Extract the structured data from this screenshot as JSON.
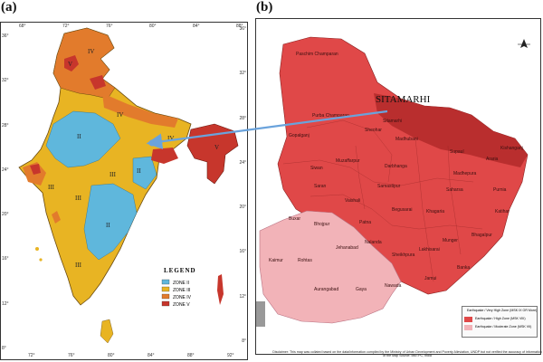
{
  "panels": {
    "a": "(a)",
    "b": "(b)"
  },
  "map_a": {
    "top_ticks": [
      "68°",
      "72°",
      "76°",
      "80°",
      "84°",
      "88°"
    ],
    "bottom_ticks": [
      "72°",
      "76°",
      "80°",
      "84°",
      "88°",
      "92°"
    ],
    "left_ticks": [
      "36°",
      "32°",
      "28°",
      "24°",
      "20°",
      "16°",
      "12°",
      "8°"
    ],
    "right_ticks": [
      "36°",
      "32°",
      "28°",
      "24°",
      "20°",
      "16°",
      "12°",
      "8°"
    ],
    "zone_labels": [
      "IV",
      "V",
      "IV",
      "III",
      "III",
      "II",
      "II",
      "III",
      "IV",
      "V",
      "III",
      "II"
    ],
    "legend": {
      "title": "LEGEND",
      "items": [
        {
          "label": "ZONE II",
          "color": "#5fb7dc"
        },
        {
          "label": "ZONE III",
          "color": "#e8b423"
        },
        {
          "label": "ZONE IV",
          "color": "#e27b2c"
        },
        {
          "label": "ZONE V",
          "color": "#c7362c"
        }
      ]
    }
  },
  "map_b": {
    "callout": "SITAMARHI",
    "districts": [
      "Paschim Champaran",
      "Purba Champaran",
      "Sitamarhi",
      "Sheohar",
      "Madhubani",
      "Supaul",
      "Araria",
      "Kishanganj",
      "Gopalganj",
      "Siwan",
      "Muzaffarpur",
      "Darbhanga",
      "Madhepura",
      "Saran",
      "Samastipur",
      "Saharsa",
      "Purnia",
      "Vaishali",
      "Begusarai",
      "Khagaria",
      "Katihar",
      "Patna",
      "Nalanda",
      "Lakhisarai",
      "Munger",
      "Bhagalpur",
      "Buxar",
      "Bhojpur",
      "Sheikhpura",
      "Kaimur",
      "Rohtas",
      "Jehanabad",
      "Aurangabad",
      "Gaya",
      "Nawada",
      "Jamui",
      "Banka"
    ],
    "legend": [
      {
        "label": "Earthquake / Very High Zone",
        "code": "(MSK IX OR More)",
        "color": "#b12a2a"
      },
      {
        "label": "Earthquake / High Zone",
        "code": "(MSK VIII)",
        "color": "#e04848"
      },
      {
        "label": "Earthquake / Moderate Zone",
        "code": "(MSK VII)",
        "color": "#f2b3b8"
      }
    ],
    "disclaimer": "Disclaimer: This map was collated based on the data/information compiled by the Ministry of Urban Development and Poverty Alleviation, UNDP but not verified the accuracy of information of the Map Source: BMTPC, India"
  },
  "colors": {
    "zone2": "#5fb7dc",
    "zone3": "#e8b423",
    "zone4": "#e27b2c",
    "zone5": "#c7362c",
    "bihar_high": "#e04848",
    "bihar_very_high": "#b12a2a",
    "bihar_moderate": "#f2b3b8",
    "arrow": "#6aa3dc"
  }
}
